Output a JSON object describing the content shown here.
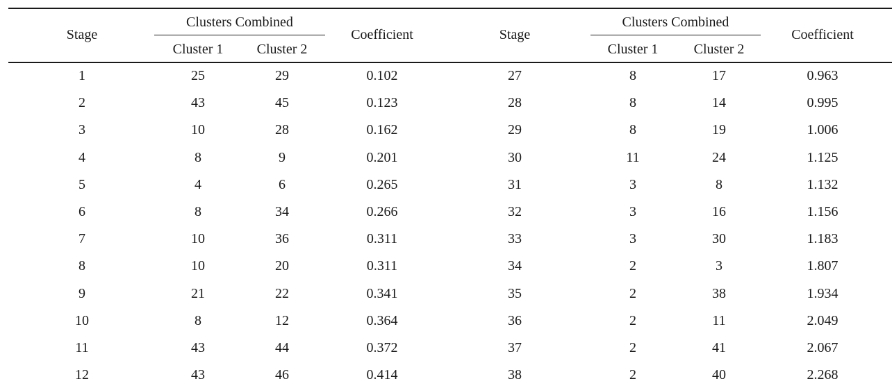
{
  "header": {
    "stage": "Stage",
    "clusters_combined": "Clusters Combined",
    "cluster1": "Cluster 1",
    "cluster2": "Cluster 2",
    "coefficient": "Coefficient"
  },
  "rows": [
    {
      "stage_l": "1",
      "c1_l": "25",
      "c2_l": "29",
      "coef_l": "0.102",
      "stage_r": "27",
      "c1_r": "8",
      "c2_r": "17",
      "coef_r": "0.963"
    },
    {
      "stage_l": "2",
      "c1_l": "43",
      "c2_l": "45",
      "coef_l": "0.123",
      "stage_r": "28",
      "c1_r": "8",
      "c2_r": "14",
      "coef_r": "0.995"
    },
    {
      "stage_l": "3",
      "c1_l": "10",
      "c2_l": "28",
      "coef_l": "0.162",
      "stage_r": "29",
      "c1_r": "8",
      "c2_r": "19",
      "coef_r": "1.006"
    },
    {
      "stage_l": "4",
      "c1_l": "8",
      "c2_l": "9",
      "coef_l": "0.201",
      "stage_r": "30",
      "c1_r": "11",
      "c2_r": "24",
      "coef_r": "1.125"
    },
    {
      "stage_l": "5",
      "c1_l": "4",
      "c2_l": "6",
      "coef_l": "0.265",
      "stage_r": "31",
      "c1_r": "3",
      "c2_r": "8",
      "coef_r": "1.132"
    },
    {
      "stage_l": "6",
      "c1_l": "8",
      "c2_l": "34",
      "coef_l": "0.266",
      "stage_r": "32",
      "c1_r": "3",
      "c2_r": "16",
      "coef_r": "1.156"
    },
    {
      "stage_l": "7",
      "c1_l": "10",
      "c2_l": "36",
      "coef_l": "0.311",
      "stage_r": "33",
      "c1_r": "3",
      "c2_r": "30",
      "coef_r": "1.183"
    },
    {
      "stage_l": "8",
      "c1_l": "10",
      "c2_l": "20",
      "coef_l": "0.311",
      "stage_r": "34",
      "c1_r": "2",
      "c2_r": "3",
      "coef_r": "1.807"
    },
    {
      "stage_l": "9",
      "c1_l": "21",
      "c2_l": "22",
      "coef_l": "0.341",
      "stage_r": "35",
      "c1_r": "2",
      "c2_r": "38",
      "coef_r": "1.934"
    },
    {
      "stage_l": "10",
      "c1_l": "8",
      "c2_l": "12",
      "coef_l": "0.364",
      "stage_r": "36",
      "c1_r": "2",
      "c2_r": "11",
      "coef_r": "2.049"
    },
    {
      "stage_l": "11",
      "c1_l": "43",
      "c2_l": "44",
      "coef_l": "0.372",
      "stage_r": "37",
      "c1_r": "2",
      "c2_r": "41",
      "coef_r": "2.067"
    },
    {
      "stage_l": "12",
      "c1_l": "43",
      "c2_l": "46",
      "coef_l": "0.414",
      "stage_r": "38",
      "c1_r": "2",
      "c2_r": "40",
      "coef_r": "2.268"
    }
  ]
}
